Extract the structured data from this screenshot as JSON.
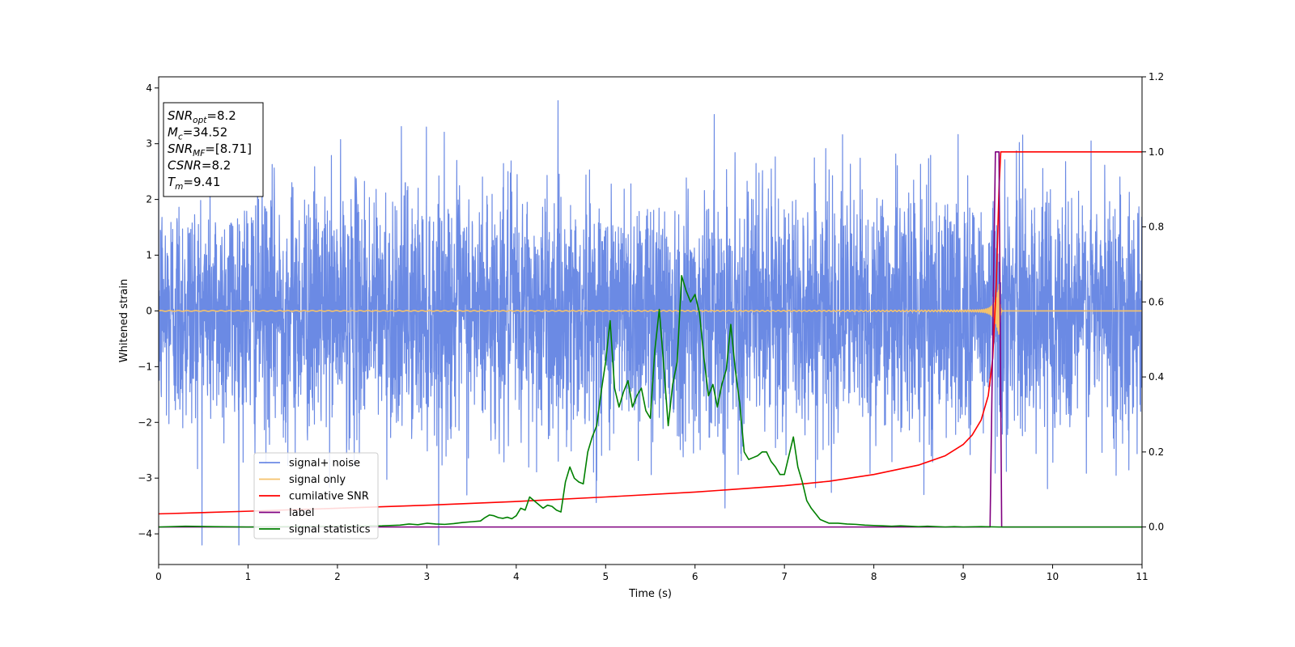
{
  "chart_data": {
    "type": "line",
    "xlabel": "Time (s)",
    "ylabel": "Whitened strain",
    "xlim": [
      0,
      11
    ],
    "ylim_left": [
      -4.55,
      4.2
    ],
    "ylim_right": [
      -0.1,
      1.2
    ],
    "xticks": [
      "0",
      "1",
      "2",
      "3",
      "4",
      "5",
      "6",
      "7",
      "8",
      "9",
      "10",
      "11"
    ],
    "yticks_left": [
      "−4",
      "−3",
      "−2",
      "−1",
      "0",
      "1",
      "2",
      "3",
      "4"
    ],
    "yticks_right": [
      "0.0",
      "0.2",
      "0.4",
      "0.6",
      "0.8",
      "1.0",
      "1.2"
    ],
    "grid": false,
    "legend_position": "lower-left",
    "info_box": {
      "snr_opt": {
        "base": "SNR",
        "sub": "opt",
        "value": "=8.2"
      },
      "mc": {
        "base": "M",
        "sub": "c",
        "value": "=34.52"
      },
      "snr_mf": {
        "base": "SNR",
        "sub": "MF",
        "value": "=[8.71]"
      },
      "csnr": {
        "base": "CSNR",
        "sub": "",
        "value": "=8.2"
      },
      "tm": {
        "base": "T",
        "sub": "m",
        "value": "=9.41"
      }
    },
    "series": [
      {
        "name": "signal+ noise",
        "axis": "left",
        "color": "#6b8ae4",
        "kind": "noise",
        "std": 1.1,
        "x_range": [
          0,
          11
        ]
      },
      {
        "name": "signal only",
        "axis": "left",
        "color": "#f5c26b",
        "kind": "chirp",
        "merger_time": 9.41
      },
      {
        "name": "cumilative SNR",
        "axis": "right",
        "color": "#ff0000",
        "x": [
          0,
          1,
          2,
          3,
          4,
          5,
          6,
          7,
          7.5,
          8,
          8.5,
          8.8,
          9.0,
          9.1,
          9.2,
          9.28,
          9.33,
          9.37,
          9.4,
          9.42,
          11
        ],
        "y": [
          0.035,
          0.042,
          0.05,
          0.058,
          0.068,
          0.08,
          0.093,
          0.11,
          0.122,
          0.14,
          0.165,
          0.19,
          0.22,
          0.245,
          0.285,
          0.35,
          0.45,
          0.65,
          0.9,
          1.0,
          1.0
        ]
      },
      {
        "name": "label",
        "axis": "right",
        "color": "#800080",
        "x": [
          0,
          9.3,
          9.36,
          9.4,
          9.43,
          11
        ],
        "y": [
          0,
          0,
          1.0,
          1.0,
          0,
          0
        ]
      },
      {
        "name": "signal statistics",
        "axis": "right",
        "color": "#008000",
        "x": [
          0,
          0.3,
          0.6,
          1.0,
          1.5,
          2.0,
          2.5,
          2.7,
          2.8,
          2.9,
          3.0,
          3.1,
          3.2,
          3.3,
          3.4,
          3.5,
          3.6,
          3.65,
          3.7,
          3.75,
          3.8,
          3.85,
          3.9,
          3.95,
          4.0,
          4.05,
          4.1,
          4.15,
          4.2,
          4.25,
          4.3,
          4.35,
          4.4,
          4.45,
          4.5,
          4.55,
          4.6,
          4.65,
          4.7,
          4.75,
          4.8,
          4.85,
          4.9,
          4.95,
          5.0,
          5.05,
          5.1,
          5.15,
          5.2,
          5.25,
          5.3,
          5.35,
          5.4,
          5.45,
          5.5,
          5.55,
          5.6,
          5.65,
          5.7,
          5.75,
          5.8,
          5.85,
          5.9,
          5.95,
          6.0,
          6.05,
          6.1,
          6.15,
          6.2,
          6.25,
          6.3,
          6.35,
          6.4,
          6.45,
          6.5,
          6.55,
          6.6,
          6.65,
          6.7,
          6.75,
          6.8,
          6.85,
          6.9,
          6.95,
          7.0,
          7.05,
          7.1,
          7.15,
          7.2,
          7.25,
          7.3,
          7.35,
          7.4,
          7.5,
          7.6,
          7.7,
          7.8,
          7.9,
          8.0,
          8.1,
          8.2,
          8.3,
          8.4,
          8.5,
          8.6,
          8.7,
          8.8,
          8.9,
          9.0,
          9.2,
          9.4,
          9.6,
          10.0,
          11.0
        ],
        "y": [
          0.0,
          0.002,
          0.001,
          0.0,
          0.001,
          0.002,
          0.003,
          0.005,
          0.008,
          0.006,
          0.01,
          0.008,
          0.007,
          0.009,
          0.012,
          0.014,
          0.016,
          0.025,
          0.032,
          0.03,
          0.025,
          0.023,
          0.026,
          0.022,
          0.03,
          0.05,
          0.045,
          0.08,
          0.07,
          0.06,
          0.05,
          0.058,
          0.055,
          0.045,
          0.04,
          0.12,
          0.16,
          0.13,
          0.12,
          0.115,
          0.2,
          0.24,
          0.27,
          0.36,
          0.44,
          0.55,
          0.37,
          0.32,
          0.36,
          0.39,
          0.32,
          0.35,
          0.37,
          0.31,
          0.29,
          0.47,
          0.58,
          0.43,
          0.27,
          0.38,
          0.44,
          0.67,
          0.63,
          0.6,
          0.62,
          0.57,
          0.45,
          0.35,
          0.38,
          0.32,
          0.38,
          0.42,
          0.54,
          0.42,
          0.33,
          0.2,
          0.18,
          0.185,
          0.19,
          0.2,
          0.2,
          0.175,
          0.16,
          0.14,
          0.14,
          0.19,
          0.24,
          0.16,
          0.12,
          0.07,
          0.05,
          0.035,
          0.02,
          0.01,
          0.01,
          0.008,
          0.007,
          0.005,
          0.004,
          0.003,
          0.002,
          0.003,
          0.002,
          0.001,
          0.002,
          0.001,
          0.0,
          0.001,
          0.0,
          0.001,
          0.0,
          0.0,
          0.0,
          0.0
        ]
      }
    ]
  }
}
